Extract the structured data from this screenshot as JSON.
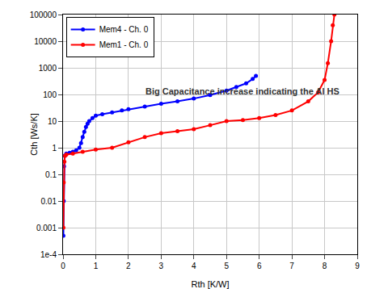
{
  "chart_data": {
    "type": "line",
    "x_label": "Rth [K/W]",
    "y_label": "Cth [Ws/K]",
    "log": "y",
    "grid": true,
    "legend": "upper left",
    "marker": "circle",
    "line_style": "solid",
    "xlim": [
      0,
      9
    ],
    "xticks": [
      0,
      1,
      2,
      3,
      4,
      5,
      6,
      7,
      8,
      9
    ],
    "ylim": [
      0.0001,
      100000
    ],
    "yticks": [
      {
        "value": 0.0001,
        "label": "1e-4"
      },
      0.001,
      0.01,
      0.1,
      1,
      10,
      100,
      1000,
      10000,
      100000
    ],
    "annotations": [
      {
        "text": "Big Capacitance increase indicating the Al HS",
        "x": 5.5,
        "y": 130
      }
    ],
    "series": [
      {
        "name": "Mem4 - Ch. 0",
        "color": "#0000ff",
        "x": [
          0.01,
          0.02,
          0.03,
          0.05,
          0.1,
          0.2,
          0.3,
          0.4,
          0.5,
          0.55,
          0.6,
          0.65,
          0.7,
          0.75,
          0.8,
          0.9,
          1.0,
          1.2,
          1.5,
          1.8,
          2.0,
          2.5,
          3.0,
          3.5,
          4.0,
          4.5,
          5.0,
          5.3,
          5.6,
          5.8,
          5.9
        ],
        "values": [
          0.0005,
          0.01,
          0.2,
          0.5,
          0.6,
          0.65,
          0.7,
          0.8,
          1.0,
          1.5,
          2.5,
          4,
          6,
          8,
          10,
          13,
          16,
          18,
          21,
          25,
          28,
          35,
          45,
          55,
          70,
          95,
          140,
          190,
          260,
          380,
          500
        ]
      },
      {
        "name": "Mem1 - Ch. 0",
        "color": "#ff0000",
        "x": [
          0.01,
          0.02,
          0.04,
          0.06,
          0.1,
          0.3,
          0.6,
          1.0,
          1.5,
          2.0,
          2.5,
          3.0,
          3.5,
          4.0,
          4.5,
          5.0,
          5.5,
          6.0,
          6.5,
          7.0,
          7.5,
          7.8,
          8.0,
          8.1,
          8.2,
          8.25,
          8.3
        ],
        "values": [
          0.001,
          0.05,
          0.3,
          0.5,
          0.55,
          0.6,
          0.7,
          0.85,
          1.0,
          1.6,
          2.5,
          3.5,
          4.2,
          5,
          7,
          10,
          11,
          13,
          17,
          25,
          55,
          120,
          350,
          1500,
          10000,
          40000,
          100000
        ]
      }
    ]
  }
}
